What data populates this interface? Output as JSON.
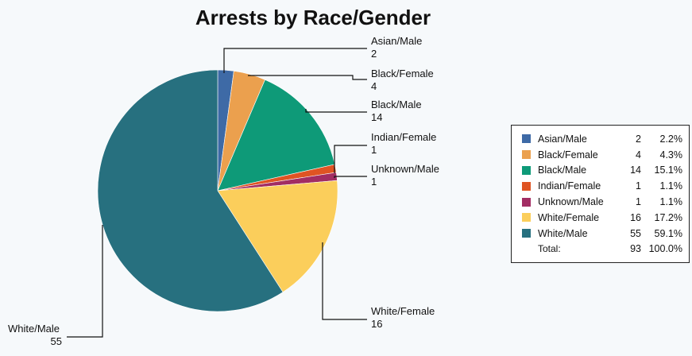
{
  "chart_data": {
    "type": "pie",
    "title": "Arrests by Race/Gender",
    "slices": [
      {
        "label": "Asian/Male",
        "value": 2,
        "percent": "2.2%",
        "color": "#3e6aa6"
      },
      {
        "label": "Black/Female",
        "value": 4,
        "percent": "4.3%",
        "color": "#eba04e"
      },
      {
        "label": "Black/Male",
        "value": 14,
        "percent": "15.1%",
        "color": "#0e9a78"
      },
      {
        "label": "Indian/Female",
        "value": 1,
        "percent": "1.1%",
        "color": "#df5423"
      },
      {
        "label": "Unknown/Male",
        "value": 1,
        "percent": "1.1%",
        "color": "#a22d63"
      },
      {
        "label": "White/Female",
        "value": 16,
        "percent": "17.2%",
        "color": "#fbce5b"
      },
      {
        "label": "White/Male",
        "value": 55,
        "percent": "59.1%",
        "color": "#27707f"
      }
    ],
    "total": {
      "label": "Total:",
      "value": 93,
      "percent": "100.0%"
    },
    "legend_position": "right",
    "start_angle_deg": 0,
    "direction": "clockwise"
  }
}
